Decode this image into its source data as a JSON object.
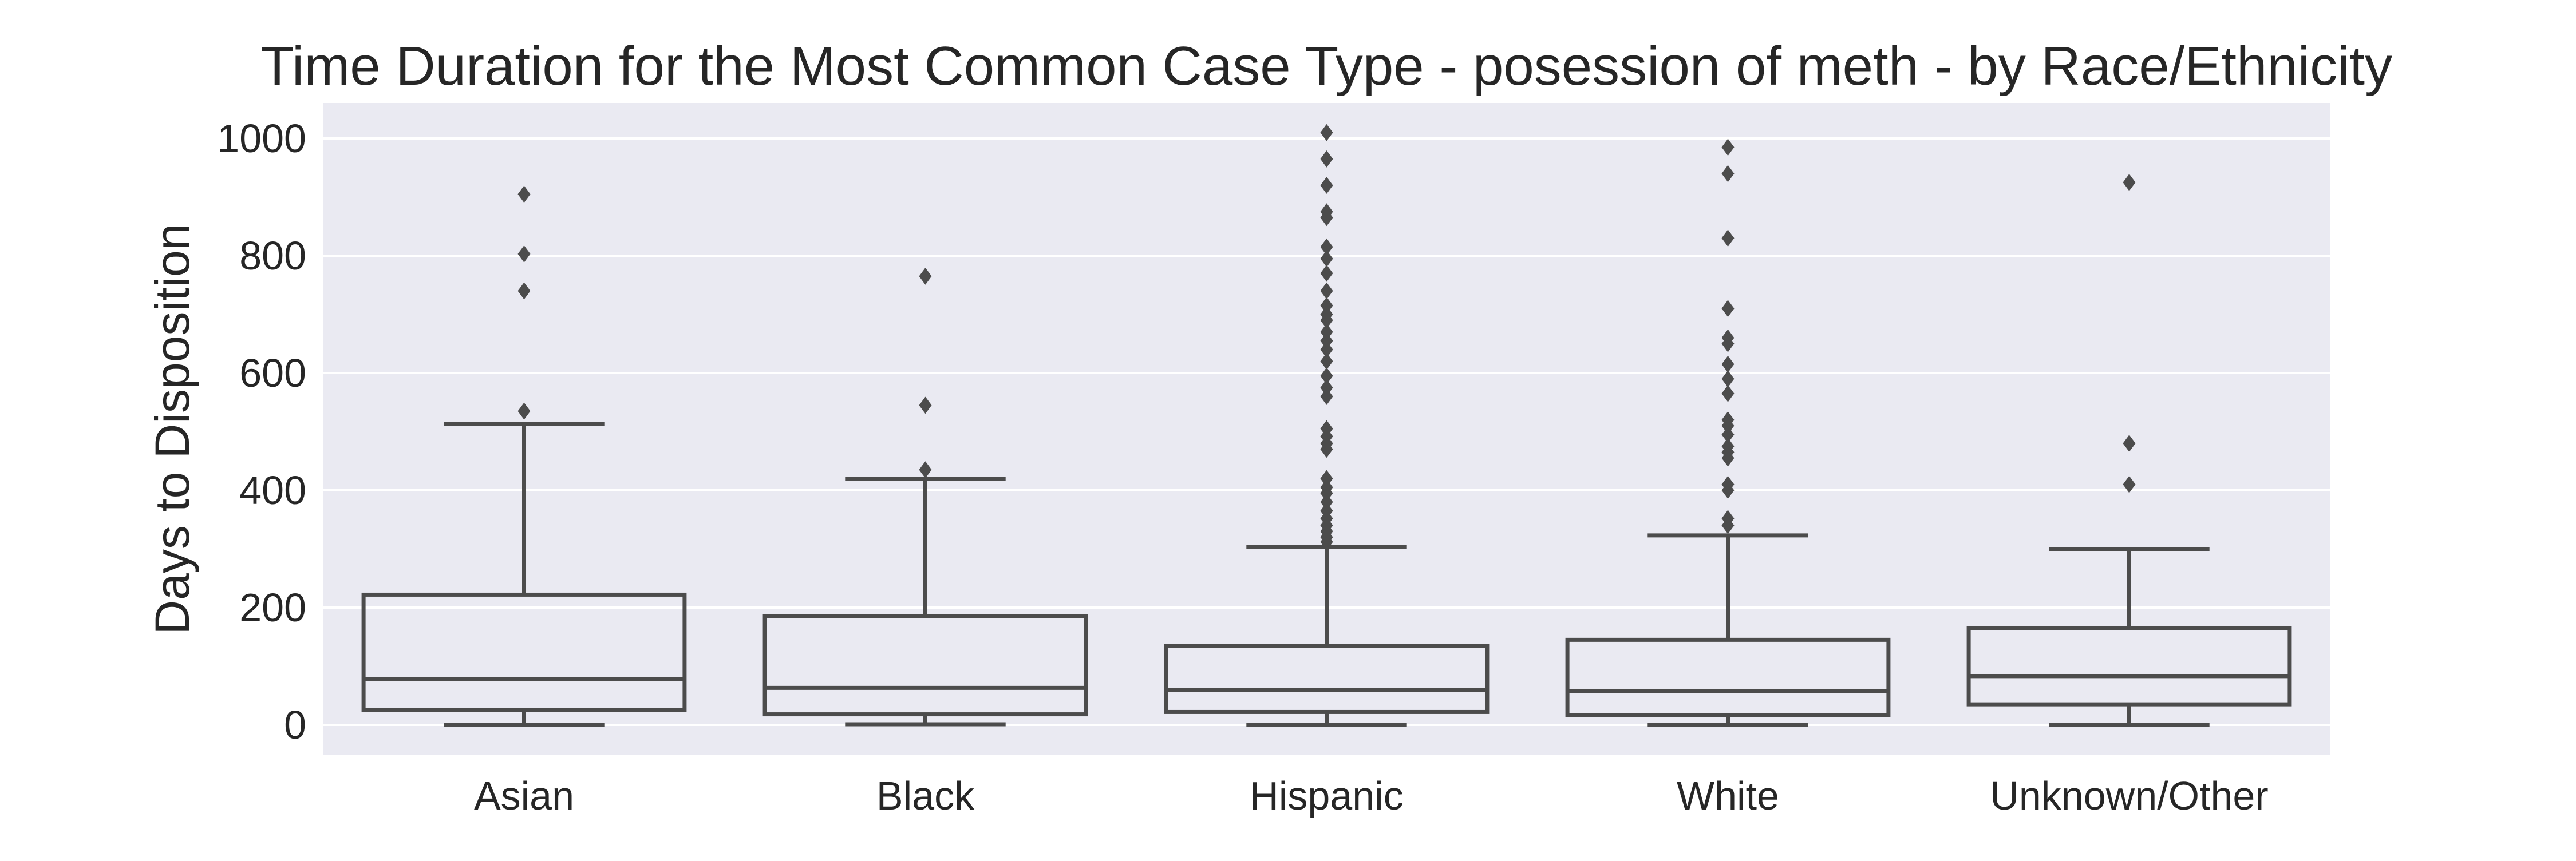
{
  "chart_data": {
    "type": "box",
    "title": "Time Duration for the Most Common Case Type - posession of meth - by Race/Ethnicity",
    "xlabel": "",
    "ylabel": "Days to Disposition",
    "ylim": [
      -50,
      1060
    ],
    "yticks": [
      0,
      200,
      400,
      600,
      800,
      1000
    ],
    "grid": true,
    "legend": "none",
    "colors": {
      "background": "#eaeaf2",
      "grid": "#ffffff",
      "box": "#4c4c4c",
      "text": "#262626"
    },
    "categories": [
      "Asian",
      "Black",
      "Hispanic",
      "White",
      "Unknown/Other"
    ],
    "boxes": [
      {
        "category": "Asian",
        "whisker_low": 0,
        "q1": 25,
        "median": 78,
        "q3": 222,
        "whisker_high": 513,
        "outliers": [
          535,
          740,
          803,
          905
        ]
      },
      {
        "category": "Black",
        "whisker_low": 1,
        "q1": 18,
        "median": 63,
        "q3": 185,
        "whisker_high": 420,
        "outliers": [
          435,
          545,
          765
        ]
      },
      {
        "category": "Hispanic",
        "whisker_low": 0,
        "q1": 22,
        "median": 60,
        "q3": 135,
        "whisker_high": 303,
        "outliers": [
          312,
          320,
          330,
          340,
          352,
          365,
          380,
          395,
          405,
          420,
          470,
          480,
          492,
          505,
          560,
          575,
          595,
          620,
          640,
          655,
          670,
          690,
          700,
          715,
          740,
          770,
          795,
          815,
          865,
          875,
          920,
          965,
          1010
        ]
      },
      {
        "category": "White",
        "whisker_low": 0,
        "q1": 17,
        "median": 58,
        "q3": 145,
        "whisker_high": 323,
        "outliers": [
          340,
          352,
          400,
          410,
          455,
          465,
          475,
          495,
          510,
          520,
          565,
          590,
          615,
          650,
          660,
          710,
          830,
          940,
          985
        ]
      },
      {
        "category": "Unknown/Other",
        "whisker_low": 0,
        "q1": 35,
        "median": 83,
        "q3": 165,
        "whisker_high": 300,
        "outliers": [
          410,
          480,
          925
        ]
      }
    ]
  }
}
